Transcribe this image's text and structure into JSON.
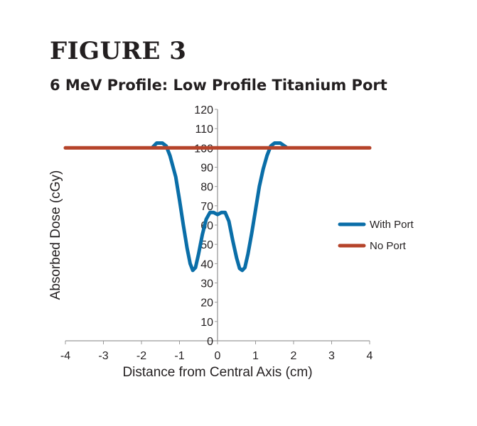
{
  "figure": {
    "heading": "FIGURE 3",
    "title": "6 MeV Profile: Low Profile Titanium Port"
  },
  "chart_data": {
    "type": "line",
    "title": "6 MeV Profile: Low Profile Titanium Port",
    "xlabel": "Distance from Central Axis (cm)",
    "ylabel": "Absorbed Dose (cGy)",
    "xlim": [
      -4,
      4
    ],
    "ylim": [
      0,
      120
    ],
    "x_ticks": [
      -4,
      -3,
      -2,
      -1,
      0,
      1,
      2,
      3,
      4
    ],
    "y_ticks": [
      0,
      10,
      20,
      30,
      40,
      50,
      60,
      70,
      80,
      90,
      100,
      110,
      120
    ],
    "grid": false,
    "legend_position": "right",
    "series": [
      {
        "name": "With Port",
        "color": "#0a6ea8",
        "points": [
          [
            -1.7,
            100.5
          ],
          [
            -1.6,
            102.5
          ],
          [
            -1.45,
            102.5
          ],
          [
            -1.35,
            101
          ],
          [
            -1.25,
            96
          ],
          [
            -1.1,
            85
          ],
          [
            -1.0,
            73
          ],
          [
            -0.9,
            60
          ],
          [
            -0.8,
            48
          ],
          [
            -0.72,
            40
          ],
          [
            -0.65,
            36.5
          ],
          [
            -0.58,
            38
          ],
          [
            -0.5,
            45
          ],
          [
            -0.4,
            55
          ],
          [
            -0.3,
            63
          ],
          [
            -0.2,
            66.5
          ],
          [
            -0.1,
            66.5
          ],
          [
            0.0,
            65.5
          ],
          [
            0.1,
            66.5
          ],
          [
            0.2,
            66.5
          ],
          [
            0.3,
            62
          ],
          [
            0.4,
            52
          ],
          [
            0.5,
            43
          ],
          [
            0.58,
            37.5
          ],
          [
            0.65,
            36.5
          ],
          [
            0.72,
            38
          ],
          [
            0.8,
            45
          ],
          [
            0.9,
            56
          ],
          [
            1.0,
            68
          ],
          [
            1.1,
            80
          ],
          [
            1.2,
            89
          ],
          [
            1.3,
            96
          ],
          [
            1.4,
            101
          ],
          [
            1.5,
            102.5
          ],
          [
            1.65,
            102.5
          ],
          [
            1.8,
            100.5
          ]
        ]
      },
      {
        "name": "No Port",
        "color": "#b5432a",
        "points": [
          [
            -4,
            100
          ],
          [
            4,
            100
          ]
        ]
      }
    ]
  }
}
